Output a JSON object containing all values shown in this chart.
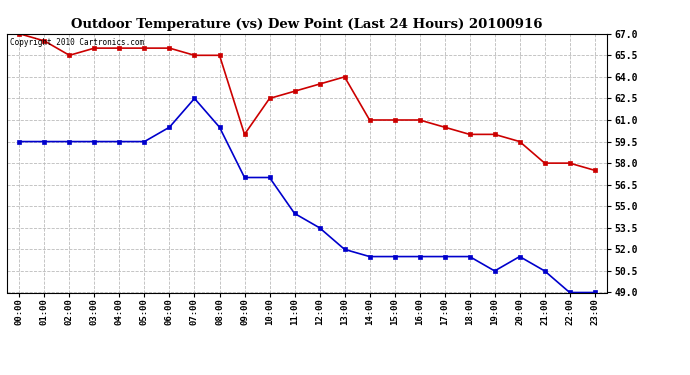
{
  "title": "Outdoor Temperature (vs) Dew Point (Last 24 Hours) 20100916",
  "copyright_text": "Copyright 2010 Cartronics.com",
  "x_labels": [
    "00:00",
    "01:00",
    "02:00",
    "03:00",
    "04:00",
    "05:00",
    "06:00",
    "07:00",
    "08:00",
    "09:00",
    "10:00",
    "11:00",
    "12:00",
    "13:00",
    "14:00",
    "15:00",
    "16:00",
    "17:00",
    "18:00",
    "19:00",
    "20:00",
    "21:00",
    "22:00",
    "23:00"
  ],
  "temp_data": [
    67.0,
    66.5,
    65.5,
    66.0,
    66.0,
    66.0,
    66.0,
    65.5,
    65.5,
    60.0,
    62.5,
    63.0,
    63.5,
    64.0,
    61.0,
    61.0,
    61.0,
    60.5,
    60.0,
    60.0,
    59.5,
    58.0,
    58.0,
    57.5
  ],
  "dew_data": [
    59.5,
    59.5,
    59.5,
    59.5,
    59.5,
    59.5,
    60.5,
    62.5,
    60.5,
    57.0,
    57.0,
    54.5,
    53.5,
    52.0,
    51.5,
    51.5,
    51.5,
    51.5,
    51.5,
    50.5,
    51.5,
    50.5,
    49.0,
    49.0
  ],
  "temp_color": "#cc0000",
  "dew_color": "#0000cc",
  "bg_color": "#ffffff",
  "grid_color": "#bbbbbb",
  "y_ticks": [
    49.0,
    50.5,
    52.0,
    53.5,
    55.0,
    56.5,
    58.0,
    59.5,
    61.0,
    62.5,
    64.0,
    65.5,
    67.0
  ],
  "ylim_min": 49.0,
  "ylim_max": 67.0
}
